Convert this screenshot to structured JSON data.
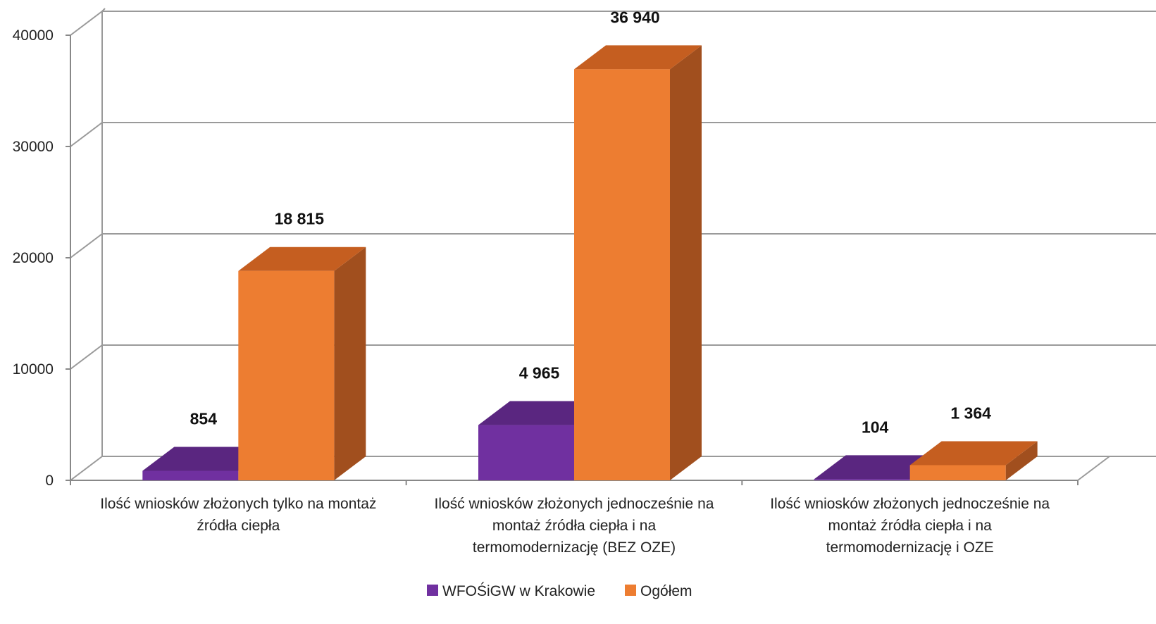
{
  "chart_data": {
    "type": "bar",
    "categories": [
      [
        "Ilość wniosków złożonych tylko na montaż",
        "źródła ciepła"
      ],
      [
        "Ilość wniosków złożonych jednocześnie na",
        "montaż źródła ciepła i na",
        "termomodernizację (BEZ OZE)"
      ],
      [
        "Ilość wniosków złożonych jednocześnie na",
        "montaż źródła ciepła i na",
        "termomodernizację i OZE"
      ]
    ],
    "series": [
      {
        "name": "WFOŚiGW w Krakowie",
        "values": [
          854,
          4965,
          104
        ],
        "labels": [
          "854",
          "4 965",
          "104"
        ],
        "color": "#7030A0",
        "top_color": "#5A2680",
        "side_color": "#4B1F6B"
      },
      {
        "name": "Ogółem",
        "values": [
          18815,
          36940,
          1364
        ],
        "labels": [
          "18 815",
          "36 940",
          "1 364"
        ],
        "color": "#ED7D31",
        "top_color": "#C55E20",
        "side_color": "#A14F1E"
      }
    ],
    "y_ticks": [
      "0",
      "10000",
      "20000",
      "30000",
      "40000"
    ],
    "ylim": [
      0,
      40000
    ],
    "grid": true,
    "legend": "bottom",
    "three_d": true
  }
}
